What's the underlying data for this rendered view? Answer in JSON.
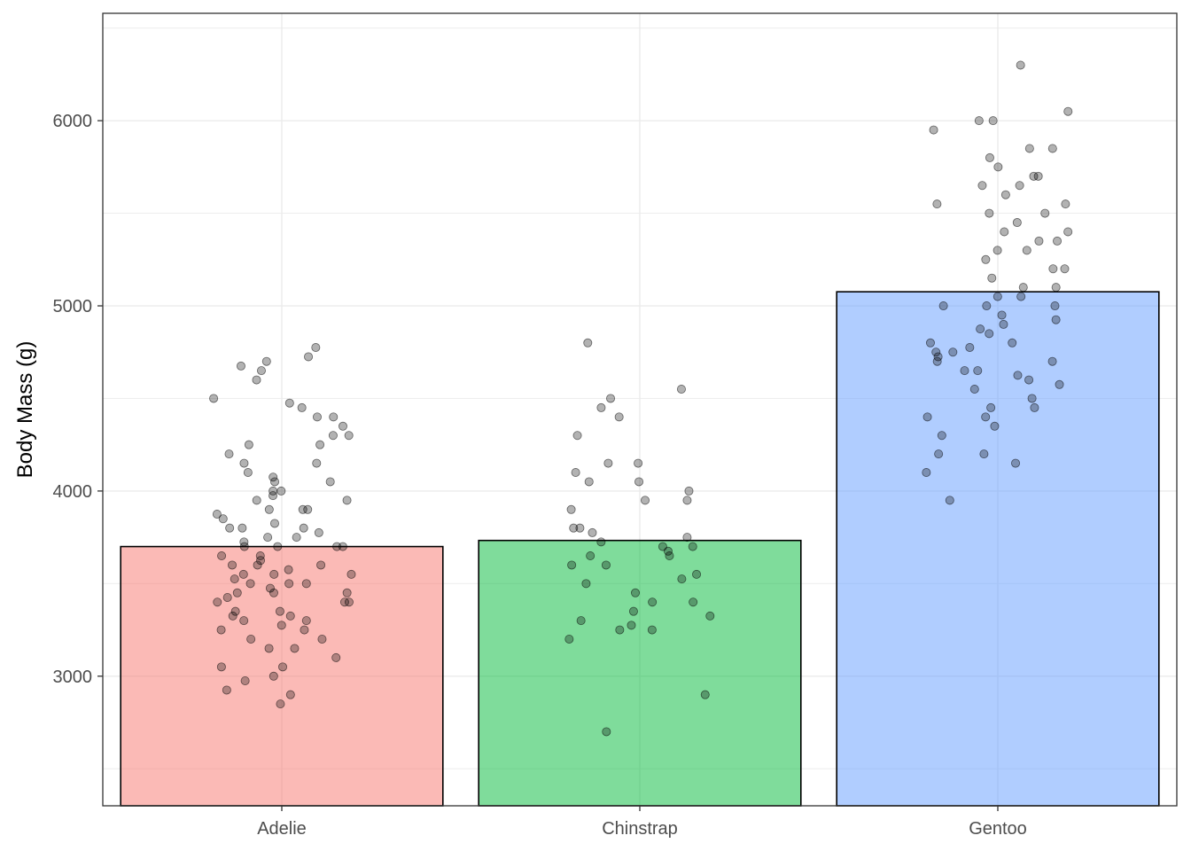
{
  "chart_data": {
    "type": "bar",
    "xlabel": "",
    "ylabel": "Body Mass (g)",
    "categories": [
      "Adelie",
      "Chinstrap",
      "Gentoo"
    ],
    "values": [
      3700,
      3733,
      5076
    ],
    "ylim": [
      2300,
      6580
    ],
    "yticks": [
      3000,
      4000,
      5000,
      6000
    ],
    "grid": true,
    "legend": "none",
    "colors": {
      "Adelie": "#F8766D",
      "Chinstrap": "#00BA38",
      "Gentoo": "#619CFF"
    },
    "points": {
      "Adelie": [
        2850,
        2900,
        2925,
        2975,
        3000,
        3050,
        3050,
        3100,
        3150,
        3150,
        3200,
        3200,
        3250,
        3250,
        3275,
        3300,
        3300,
        3325,
        3325,
        3350,
        3350,
        3400,
        3400,
        3400,
        3425,
        3450,
        3450,
        3450,
        3475,
        3500,
        3500,
        3500,
        3525,
        3550,
        3550,
        3550,
        3575,
        3600,
        3600,
        3600,
        3625,
        3650,
        3650,
        3700,
        3700,
        3700,
        3700,
        3725,
        3750,
        3750,
        3775,
        3800,
        3800,
        3800,
        3825,
        3850,
        3875,
        3900,
        3900,
        3900,
        3950,
        3950,
        3975,
        4000,
        4000,
        4050,
        4050,
        4075,
        4100,
        4150,
        4150,
        4200,
        4250,
        4250,
        4300,
        4300,
        4350,
        4400,
        4400,
        4450,
        4475,
        4500,
        4600,
        4650,
        4675,
        4700,
        4725,
        4775
      ],
      "Chinstrap": [
        2700,
        2900,
        3200,
        3250,
        3250,
        3275,
        3300,
        3325,
        3350,
        3400,
        3400,
        3450,
        3500,
        3525,
        3550,
        3600,
        3600,
        3650,
        3650,
        3675,
        3700,
        3700,
        3725,
        3750,
        3775,
        3800,
        3800,
        3900,
        3950,
        3950,
        4000,
        4050,
        4050,
        4100,
        4150,
        4150,
        4300,
        4400,
        4450,
        4500,
        4550,
        4800
      ],
      "Gentoo": [
        3950,
        4100,
        4150,
        4200,
        4200,
        4300,
        4350,
        4400,
        4400,
        4450,
        4450,
        4500,
        4550,
        4575,
        4600,
        4625,
        4650,
        4650,
        4700,
        4700,
        4725,
        4750,
        4750,
        4775,
        4800,
        4800,
        4850,
        4875,
        4900,
        4925,
        4950,
        5000,
        5000,
        5000,
        5050,
        5050,
        5100,
        5100,
        5150,
        5200,
        5200,
        5250,
        5300,
        5300,
        5350,
        5350,
        5400,
        5400,
        5450,
        5500,
        5500,
        5550,
        5550,
        5600,
        5650,
        5650,
        5700,
        5700,
        5750,
        5800,
        5850,
        5850,
        5950,
        6000,
        6000,
        6050,
        6300
      ]
    }
  }
}
